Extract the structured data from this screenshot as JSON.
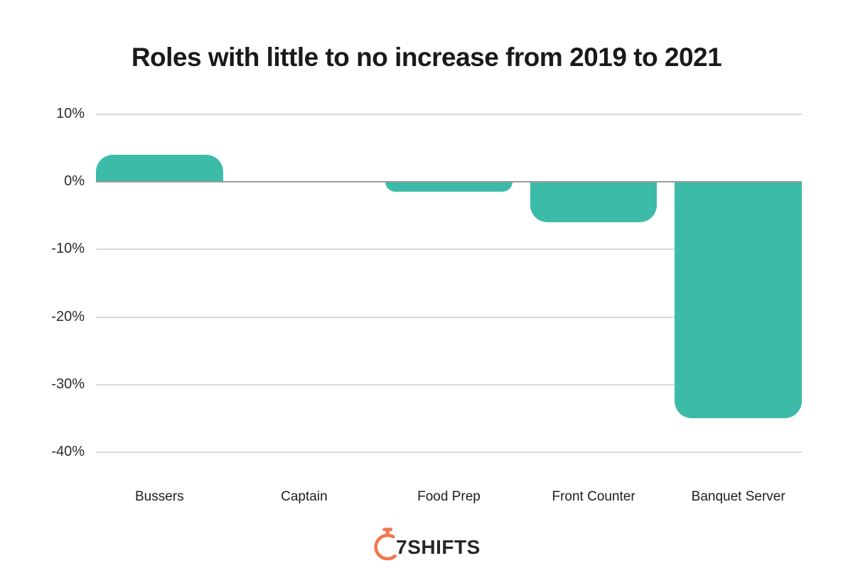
{
  "title": "Roles with little to no increase from 2019 to 2021",
  "chart_data": {
    "type": "bar",
    "categories": [
      "Bussers",
      "Captain",
      "Food Prep",
      "Front Counter",
      "Banquet Server"
    ],
    "values": [
      4,
      0,
      -1.5,
      -6,
      -35
    ],
    "title": "Roles with little to no increase from 2019 to 2021",
    "xlabel": "",
    "ylabel": "",
    "ylim": [
      -40,
      10
    ],
    "yticks": [
      10,
      0,
      -10,
      -20,
      -30,
      -40
    ],
    "ytick_labels": [
      "10%",
      "0%",
      "-10%",
      "-20%",
      "-30%",
      "-40%"
    ],
    "bar_color": "#3cbca8",
    "grid": true,
    "legend": false,
    "unit": "%"
  },
  "footer": {
    "logo_text": "7SHIFTS",
    "logo_icon": "stopwatch-icon",
    "logo_icon_color": "#f4764e",
    "logo_text_color": "#262626"
  },
  "colors": {
    "background": "#ffffff",
    "bar_teal": "#3cbca8",
    "gridline": "#dadada",
    "zero_line": "#9a9a9a",
    "title_text": "#1a1a1a",
    "axis_text": "#2b2b2b"
  }
}
